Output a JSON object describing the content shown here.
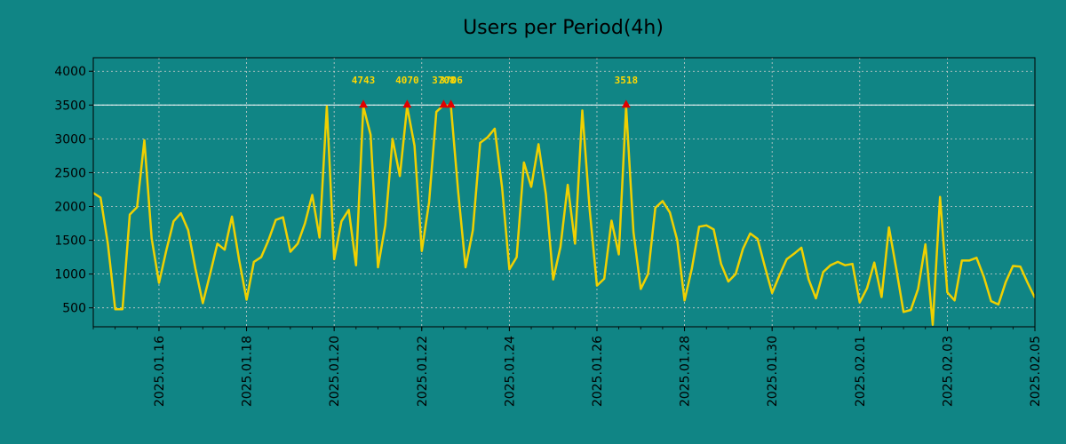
{
  "chart_data": {
    "type": "line",
    "title": "Users per Period(4h)",
    "xlabel": "",
    "ylabel": "",
    "ylim": [
      220,
      4200
    ],
    "yticks": [
      500,
      1000,
      1500,
      2000,
      2500,
      3000,
      3500,
      4000
    ],
    "xticks": [
      "2025.01.16",
      "2025.01.18",
      "2025.01.20",
      "2025.01.22",
      "2025.01.24",
      "2025.01.26",
      "2025.01.28",
      "2025.01.30",
      "2025.02.01",
      "2025.02.03",
      "2025.02.05"
    ],
    "grid": true,
    "threshold": 3500,
    "line_color": "#f0d000",
    "threshold_color": "#ffffff",
    "marker_color": "#e00000",
    "annotation_color": "#ffd700",
    "series": [
      {
        "x_start": "2025.01.14 12:00",
        "step_hours": 4,
        "values": [
          2200,
          2130,
          1450,
          480,
          480,
          1880,
          1990,
          2980,
          1530,
          870,
          1350,
          1780,
          1900,
          1650,
          1080,
          570,
          1000,
          1450,
          1360,
          1850,
          1200,
          620,
          1180,
          1250,
          1500,
          1800,
          1840,
          1330,
          1450,
          1750,
          2170,
          1540,
          3480,
          1220,
          1780,
          1950,
          1130,
          3480,
          3060,
          1100,
          1720,
          3000,
          2450,
          3480,
          2900,
          1340,
          2060,
          3400,
          3500,
          3480,
          2200,
          1100,
          1650,
          2940,
          3020,
          3150,
          2280,
          1070,
          1250,
          2650,
          2290,
          2920,
          2180,
          920,
          1400,
          2320,
          1450,
          3420,
          1950,
          830,
          930,
          1790,
          1290,
          3480,
          1620,
          780,
          1000,
          1980,
          2080,
          1910,
          1500,
          610,
          1080,
          1700,
          1720,
          1660,
          1150,
          890,
          1000,
          1370,
          1600,
          1520,
          1110,
          720,
          980,
          1220,
          1300,
          1390,
          920,
          640,
          1030,
          1130,
          1180,
          1130,
          1150,
          580,
          790,
          1170,
          660,
          1690,
          1080,
          440,
          470,
          780,
          1440,
          250,
          2140,
          730,
          610,
          1200,
          1200,
          1240,
          960,
          600,
          550,
          880,
          1120,
          1110,
          870,
          650
        ]
      }
    ],
    "peaks": [
      {
        "label": "4743",
        "index": 37
      },
      {
        "label": "4070",
        "index": 43
      },
      {
        "label": "3708",
        "index": 48
      },
      {
        "label": "3706",
        "index": 49
      },
      {
        "label": "3518",
        "index": 73
      }
    ]
  }
}
